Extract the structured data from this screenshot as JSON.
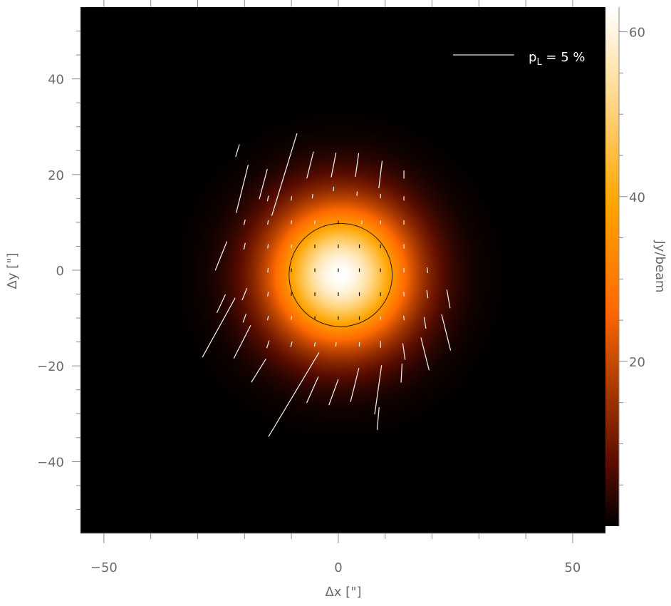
{
  "chart_data": {
    "type": "heatmap",
    "title": "",
    "xlabel": "Δx [\"]",
    "ylabel": "Δy [\"]",
    "xlim": [
      -55,
      57
    ],
    "ylim": [
      -55,
      55
    ],
    "x_ticks": [
      -50,
      0,
      50
    ],
    "x_tick_labels": [
      "−50",
      "0",
      "50"
    ],
    "y_ticks": [
      -40,
      -20,
      0,
      20,
      40
    ],
    "y_tick_labels": [
      "−40",
      "−20",
      "0",
      "20",
      "40"
    ],
    "grid": false,
    "background_color": "#000000",
    "intensity_map": {
      "shape": "gaussian",
      "center": [
        0.5,
        -1
      ],
      "sigma_arcsec": 10.5,
      "peak_jy_per_beam": 63,
      "contour_radius_arcsec": 11
    },
    "colorbar": {
      "label": "Jy/beam",
      "range": [
        0,
        63
      ],
      "ticks": [
        20,
        40,
        60
      ],
      "tick_labels": [
        "20",
        "40",
        "60"
      ],
      "colors": [
        "#000000",
        "#5a0c00",
        "#ff6a00",
        "#ffa500",
        "#ffde9c",
        "#ffffff"
      ]
    },
    "legend": {
      "position": "top-right",
      "text_main": "p",
      "text_sub": "L",
      "text_rest": " = 5 %",
      "reference_length_percent": 5
    },
    "vector_scale_arcsec_per_percent": 2.6,
    "polarization_vectors": [
      {
        "x": -21.5,
        "y": 25.0,
        "p": 1.0,
        "angle": 17
      },
      {
        "x": -20.5,
        "y": 17.0,
        "p": 4.0,
        "angle": 14
      },
      {
        "x": -16.0,
        "y": 18.0,
        "p": 2.5,
        "angle": 15
      },
      {
        "x": -11.5,
        "y": 20.0,
        "p": 7.0,
        "angle": 17
      },
      {
        "x": -6.0,
        "y": 22.0,
        "p": 2.2,
        "angle": 14
      },
      {
        "x": -1.0,
        "y": 22.0,
        "p": 2.0,
        "angle": 11
      },
      {
        "x": 4.0,
        "y": 22.0,
        "p": 1.9,
        "angle": 8
      },
      {
        "x": 9.0,
        "y": 20.0,
        "p": 2.2,
        "angle": 7
      },
      {
        "x": 14.0,
        "y": 20.0,
        "p": 0.6,
        "angle": 0
      },
      {
        "x": -25.0,
        "y": 3.0,
        "p": 2.5,
        "angle": 22
      },
      {
        "x": -20.0,
        "y": 10.0,
        "p": 0.4,
        "angle": 14
      },
      {
        "x": -15.0,
        "y": 15.0,
        "p": 0.4,
        "angle": 12
      },
      {
        "x": -10.0,
        "y": 15.0,
        "p": 0.3,
        "angle": 10
      },
      {
        "x": -5.5,
        "y": 15.5,
        "p": 0.3,
        "angle": 8
      },
      {
        "x": -1.0,
        "y": 17.0,
        "p": 0.3,
        "angle": 5
      },
      {
        "x": 4.0,
        "y": 16.0,
        "p": 0.3,
        "angle": 4
      },
      {
        "x": 9.0,
        "y": 15.5,
        "p": 0.3,
        "angle": 2
      },
      {
        "x": 14.0,
        "y": 15.0,
        "p": 0.3,
        "angle": 0
      },
      {
        "x": -20.0,
        "y": 5.0,
        "p": 0.5,
        "angle": 12
      },
      {
        "x": -15.0,
        "y": 10.0,
        "p": 0.3,
        "angle": 10
      },
      {
        "x": -10.0,
        "y": 10.0,
        "p": 0.2,
        "angle": 8
      },
      {
        "x": -5.0,
        "y": 10.0,
        "p": 0.15,
        "angle": 5
      },
      {
        "x": 0.0,
        "y": 10.0,
        "p": 0.15,
        "angle": 3
      },
      {
        "x": 5.0,
        "y": 10.0,
        "p": 0.15,
        "angle": 2
      },
      {
        "x": 9.0,
        "y": 10.0,
        "p": 0.2,
        "angle": 0
      },
      {
        "x": 14.0,
        "y": 10.0,
        "p": 0.3,
        "angle": 0
      },
      {
        "x": -15.0,
        "y": 5.0,
        "p": 0.3,
        "angle": 8
      },
      {
        "x": -10.0,
        "y": 5.0,
        "p": 0.15,
        "angle": 5
      },
      {
        "x": -5.0,
        "y": 5.0,
        "p": 0.1,
        "angle": 3
      },
      {
        "x": 0.0,
        "y": 5.0,
        "p": 0.1,
        "angle": 2
      },
      {
        "x": 4.5,
        "y": 5.0,
        "p": 0.1,
        "angle": 0
      },
      {
        "x": 9.0,
        "y": 5.0,
        "p": 0.15,
        "angle": 0
      },
      {
        "x": 14.0,
        "y": 5.0,
        "p": 0.3,
        "angle": -2
      },
      {
        "x": -15.0,
        "y": 0.0,
        "p": 0.3,
        "angle": 5
      },
      {
        "x": -10.0,
        "y": 0.0,
        "p": 0.15,
        "angle": 3
      },
      {
        "x": -5.0,
        "y": 0.0,
        "p": 0.08,
        "angle": 0
      },
      {
        "x": 0.0,
        "y": 0.0,
        "p": 0.06,
        "angle": 0
      },
      {
        "x": 4.5,
        "y": 0.0,
        "p": 0.08,
        "angle": 0
      },
      {
        "x": 9.0,
        "y": 0.0,
        "p": 0.15,
        "angle": -3
      },
      {
        "x": 14.0,
        "y": 0.0,
        "p": 0.3,
        "angle": -4
      },
      {
        "x": 19.0,
        "y": 0.0,
        "p": 0.4,
        "angle": -6
      },
      {
        "x": -20.0,
        "y": -5.0,
        "p": 1.0,
        "angle": 22
      },
      {
        "x": -15.0,
        "y": -5.0,
        "p": 0.3,
        "angle": 10
      },
      {
        "x": -10.0,
        "y": -5.0,
        "p": 0.15,
        "angle": 6
      },
      {
        "x": -5.0,
        "y": -5.0,
        "p": 0.08,
        "angle": 3
      },
      {
        "x": 0.0,
        "y": -5.0,
        "p": 0.06,
        "angle": 0
      },
      {
        "x": 4.5,
        "y": -5.0,
        "p": 0.08,
        "angle": -2
      },
      {
        "x": 9.0,
        "y": -5.0,
        "p": 0.15,
        "angle": -4
      },
      {
        "x": 14.0,
        "y": -5.0,
        "p": 0.3,
        "angle": -6
      },
      {
        "x": 19.0,
        "y": -5.0,
        "p": 0.6,
        "angle": -8
      },
      {
        "x": 23.5,
        "y": -6.0,
        "p": 1.5,
        "angle": -10
      },
      {
        "x": -25.0,
        "y": -7.0,
        "p": 1.6,
        "angle": 25
      },
      {
        "x": -20.0,
        "y": -10.0,
        "p": 0.7,
        "angle": 20
      },
      {
        "x": -15.0,
        "y": -10.0,
        "p": 0.3,
        "angle": 14
      },
      {
        "x": -10.0,
        "y": -10.0,
        "p": 0.2,
        "angle": 10
      },
      {
        "x": -5.0,
        "y": -10.0,
        "p": 0.15,
        "angle": 6
      },
      {
        "x": 0.0,
        "y": -10.0,
        "p": 0.15,
        "angle": 0
      },
      {
        "x": 4.5,
        "y": -10.0,
        "p": 0.15,
        "angle": -3
      },
      {
        "x": 9.0,
        "y": -10.0,
        "p": 0.2,
        "angle": -5
      },
      {
        "x": 14.0,
        "y": -10.0,
        "p": 0.3,
        "angle": -7
      },
      {
        "x": 18.5,
        "y": -11.0,
        "p": 0.9,
        "angle": -9
      },
      {
        "x": 23.0,
        "y": -13.0,
        "p": 3.0,
        "angle": -14
      },
      {
        "x": -25.5,
        "y": -12.0,
        "p": 5.5,
        "angle": 29
      },
      {
        "x": -20.5,
        "y": -15.0,
        "p": 3.0,
        "angle": 27
      },
      {
        "x": -15.0,
        "y": -15.5,
        "p": 0.6,
        "angle": 18
      },
      {
        "x": -10.0,
        "y": -15.5,
        "p": 0.4,
        "angle": 14
      },
      {
        "x": -5.0,
        "y": -15.5,
        "p": 0.3,
        "angle": 10
      },
      {
        "x": -0.5,
        "y": -15.5,
        "p": 0.3,
        "angle": 6
      },
      {
        "x": 4.5,
        "y": -15.5,
        "p": 0.3,
        "angle": 2
      },
      {
        "x": 9.0,
        "y": -15.5,
        "p": 0.5,
        "angle": -3
      },
      {
        "x": 14.0,
        "y": -17.0,
        "p": 1.3,
        "angle": -8
      },
      {
        "x": 18.5,
        "y": -17.5,
        "p": 2.7,
        "angle": -14
      },
      {
        "x": -17.0,
        "y": -21.0,
        "p": 2.2,
        "angle": 32
      },
      {
        "x": -5.5,
        "y": -25.0,
        "p": 2.3,
        "angle": 24
      },
      {
        "x": -1.0,
        "y": -25.5,
        "p": 2.2,
        "angle": 20
      },
      {
        "x": 3.5,
        "y": -24.0,
        "p": 2.8,
        "angle": 14
      },
      {
        "x": 8.5,
        "y": -25.0,
        "p": 4.0,
        "angle": 8
      },
      {
        "x": 13.5,
        "y": -21.5,
        "p": 1.5,
        "angle": 3
      },
      {
        "x": -9.5,
        "y": -26.0,
        "p": 8.0,
        "angle": 31
      },
      {
        "x": 8.5,
        "y": -31.0,
        "p": 1.8,
        "angle": 5
      }
    ]
  }
}
